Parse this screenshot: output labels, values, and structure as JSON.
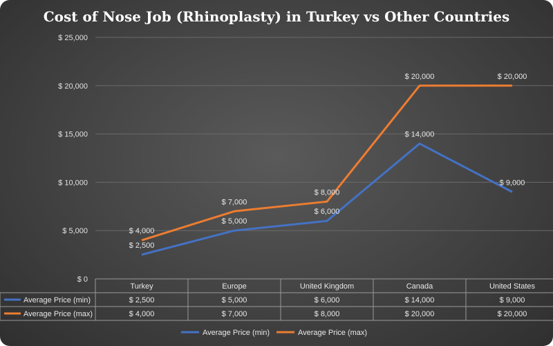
{
  "chart_data": {
    "type": "line",
    "title": "Cost of Nose Job (Rhinoplasty) in Turkey vs Other Countries",
    "categories": [
      "Turkey",
      "Europe",
      "United Kingdom",
      "Canada",
      "United States"
    ],
    "series": [
      {
        "name": "Average Price (min)",
        "color": "#4472c4",
        "values": [
          2500,
          5000,
          6000,
          14000,
          9000
        ],
        "labels": [
          "$ 2,500",
          "$ 5,000",
          "$ 6,000",
          "$ 14,000",
          "$ 9,000"
        ]
      },
      {
        "name": "Average Price (max)",
        "color": "#ed7d31",
        "values": [
          4000,
          7000,
          8000,
          20000,
          20000
        ],
        "labels": [
          "$ 4,000",
          "$ 7,000",
          "$ 8,000",
          "$ 20,000",
          "$ 20,000"
        ]
      }
    ],
    "ylim": [
      0,
      25000
    ],
    "yticks": [
      0,
      5000,
      10000,
      15000,
      20000,
      25000
    ],
    "ytick_labels": [
      "$ 0",
      "$ 5,000",
      "$ 10,000",
      "$ 15,000",
      "$ 20,000",
      "$ 25,000"
    ],
    "grid": true,
    "legend_position": "bottom",
    "data_table": true
  }
}
